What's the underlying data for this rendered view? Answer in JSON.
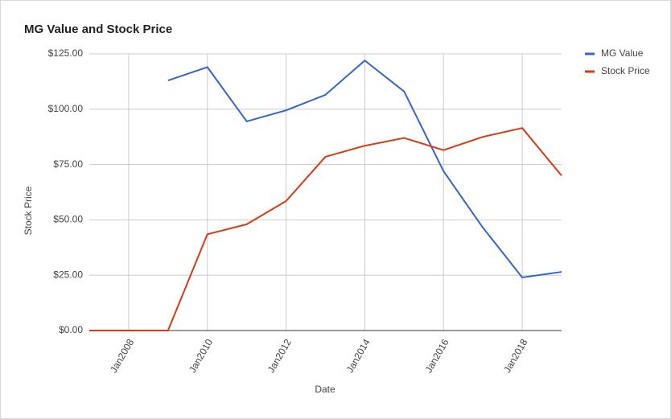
{
  "chart_data": {
    "type": "line",
    "title": "MG Value and Stock Price",
    "x_label": "Date",
    "y_label": "Stock Price",
    "x": [
      2007,
      2008,
      2009,
      2010,
      2011,
      2012,
      2013,
      2014,
      2015,
      2016,
      2017,
      2018,
      2019
    ],
    "series": [
      {
        "name": "MG Value",
        "color": "#3366cc",
        "values": [
          null,
          null,
          113,
          119,
          94.5,
          99.5,
          106.5,
          122,
          108,
          72,
          46.5,
          24,
          26.5
        ]
      },
      {
        "name": "Stock Price",
        "color": "#dc3912",
        "values": [
          0,
          0,
          0,
          43.5,
          48,
          58.5,
          78.5,
          83.5,
          87,
          81.5,
          87.5,
          91.5,
          70
        ]
      }
    ],
    "xlim": [
      2007,
      2019
    ],
    "xticks": [
      {
        "value": 2008,
        "label": "Jan2008"
      },
      {
        "value": 2010,
        "label": "Jan2010"
      },
      {
        "value": 2012,
        "label": "Jan2012"
      },
      {
        "value": 2014,
        "label": "Jan2014"
      },
      {
        "value": 2016,
        "label": "Jan2016"
      },
      {
        "value": 2018,
        "label": "Jan2018"
      }
    ],
    "ylim": [
      0,
      125
    ],
    "yticks": [
      {
        "value": 0,
        "label": "$0.00"
      },
      {
        "value": 25,
        "label": "$25.00"
      },
      {
        "value": 50,
        "label": "$50.00"
      },
      {
        "value": 75,
        "label": "$75.00"
      },
      {
        "value": 100,
        "label": "$100.00"
      },
      {
        "value": 125,
        "label": "$125.00"
      }
    ],
    "grid": true,
    "legend": "top-right"
  }
}
